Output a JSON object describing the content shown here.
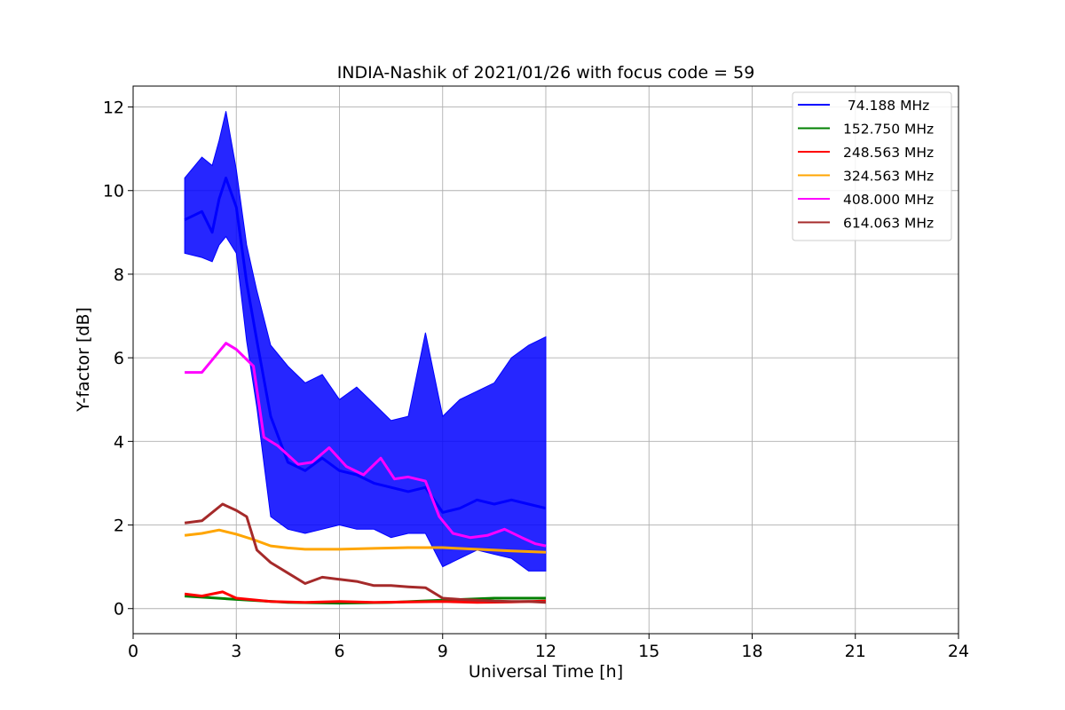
{
  "chart_data": {
    "type": "line",
    "title": "INDIA-Nashik of 2021/01/26 with focus code = 59",
    "xlabel": "Universal Time [h]",
    "ylabel": "Y-factor [dB]",
    "xlim": [
      0,
      24
    ],
    "ylim": [
      -0.6,
      12.5
    ],
    "xticks": [
      0,
      3,
      6,
      9,
      12,
      15,
      18,
      21,
      24
    ],
    "yticks": [
      0,
      2,
      4,
      6,
      8,
      10,
      12
    ],
    "grid": true,
    "legend_position": "top-right",
    "series": [
      {
        "name": " 74.188 MHz",
        "color": "#0000ff",
        "x": [
          1.5,
          2.0,
          2.3,
          2.5,
          2.7,
          3.0,
          3.3,
          3.6,
          4.0,
          4.5,
          5.0,
          5.5,
          6.0,
          6.5,
          7.0,
          7.5,
          8.0,
          8.5,
          9.0,
          9.5,
          10.0,
          10.5,
          11.0,
          11.5,
          12.0
        ],
        "y": [
          9.3,
          9.5,
          9.0,
          9.8,
          10.3,
          9.6,
          7.8,
          6.4,
          4.6,
          3.5,
          3.3,
          3.6,
          3.3,
          3.2,
          3.0,
          2.9,
          2.8,
          2.9,
          2.3,
          2.4,
          2.6,
          2.5,
          2.6,
          2.5,
          2.4
        ],
        "y_low": [
          8.5,
          8.4,
          8.3,
          8.7,
          8.9,
          8.5,
          6.4,
          4.8,
          2.2,
          1.9,
          1.8,
          1.9,
          2.0,
          1.9,
          1.9,
          1.7,
          1.8,
          1.8,
          1.0,
          1.2,
          1.4,
          1.3,
          1.2,
          0.9,
          0.9
        ],
        "y_high": [
          10.3,
          10.8,
          10.6,
          11.2,
          11.9,
          10.5,
          8.7,
          7.6,
          6.3,
          5.8,
          5.4,
          5.6,
          5.0,
          5.3,
          4.9,
          4.5,
          4.6,
          6.6,
          4.6,
          5.0,
          5.2,
          5.4,
          6.0,
          6.3,
          6.5
        ]
      },
      {
        "name": "152.750 MHz",
        "color": "#008000",
        "x": [
          1.5,
          3.0,
          4.5,
          6.0,
          7.5,
          9.0,
          10.5,
          12.0
        ],
        "y": [
          0.3,
          0.22,
          0.15,
          0.13,
          0.15,
          0.2,
          0.25,
          0.25
        ]
      },
      {
        "name": "248.563 MHz",
        "color": "#ff0000",
        "x": [
          1.5,
          2.0,
          2.6,
          3.0,
          4.0,
          5.0,
          6.0,
          7.0,
          8.0,
          9.0,
          10.0,
          11.0,
          12.0
        ],
        "y": [
          0.35,
          0.3,
          0.4,
          0.25,
          0.17,
          0.15,
          0.17,
          0.15,
          0.16,
          0.17,
          0.15,
          0.16,
          0.18
        ]
      },
      {
        "name": "324.563 MHz",
        "color": "#ffa500",
        "x": [
          1.5,
          2.0,
          2.5,
          3.0,
          3.5,
          4.0,
          4.5,
          5.0,
          6.0,
          7.0,
          8.0,
          9.0,
          10.0,
          11.0,
          12.0
        ],
        "y": [
          1.75,
          1.8,
          1.88,
          1.78,
          1.65,
          1.5,
          1.45,
          1.42,
          1.42,
          1.44,
          1.46,
          1.46,
          1.42,
          1.38,
          1.35
        ]
      },
      {
        "name": "408.000 MHz",
        "color": "#ff00ff",
        "x": [
          1.5,
          2.0,
          2.4,
          2.7,
          3.0,
          3.5,
          3.8,
          4.2,
          4.8,
          5.2,
          5.7,
          6.2,
          6.7,
          7.2,
          7.6,
          8.0,
          8.5,
          8.9,
          9.3,
          9.8,
          10.3,
          10.8,
          11.3,
          11.7,
          12.0
        ],
        "y": [
          5.65,
          5.65,
          6.05,
          6.35,
          6.2,
          5.8,
          4.1,
          3.9,
          3.45,
          3.5,
          3.85,
          3.4,
          3.2,
          3.6,
          3.1,
          3.15,
          3.05,
          2.2,
          1.8,
          1.7,
          1.75,
          1.9,
          1.7,
          1.55,
          1.5
        ]
      },
      {
        "name": "614.063 MHz",
        "color": "#a52a2a",
        "x": [
          1.5,
          2.0,
          2.6,
          3.0,
          3.3,
          3.6,
          4.0,
          4.5,
          5.0,
          5.5,
          6.0,
          6.5,
          7.0,
          7.5,
          8.0,
          8.5,
          9.0,
          9.5,
          10.0,
          10.5,
          11.0,
          11.5,
          12.0
        ],
        "y": [
          2.05,
          2.1,
          2.5,
          2.35,
          2.2,
          1.4,
          1.1,
          0.85,
          0.6,
          0.75,
          0.7,
          0.65,
          0.55,
          0.55,
          0.52,
          0.5,
          0.25,
          0.22,
          0.2,
          0.18,
          0.17,
          0.17,
          0.15
        ]
      }
    ]
  }
}
